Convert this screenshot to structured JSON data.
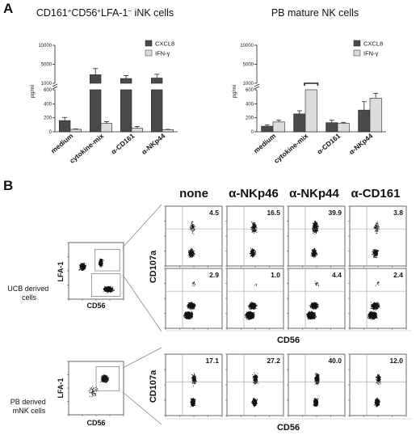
{
  "panel_a": {
    "letter": "A",
    "charts": [
      {
        "title_parts": [
          "CD161",
          "+",
          "CD56",
          "+",
          "LFA-1",
          "−",
          " iNK cells"
        ],
        "legend": [
          "CXCL8",
          "IFN-γ"
        ],
        "ylabel": "pg/ml"
      },
      {
        "title_parts": [
          "PB mature NK cells"
        ],
        "legend": [
          "CXCL8",
          "IFN-γ"
        ],
        "ylabel": "pg/ml"
      }
    ],
    "yticks_lower": [
      "0",
      "200",
      "400",
      "600"
    ],
    "yticks_upper": [
      "1000",
      "5000",
      "10000"
    ]
  },
  "panel_b": {
    "letter": "B",
    "col_headers": [
      "none",
      "α-NKp46",
      "α-NKp44",
      "α-CD161"
    ],
    "row_labels": [
      "UCB derived\ncells",
      "PB derived\nmNK cells"
    ],
    "ucb_top_pct": [
      "4.5",
      "16.5",
      "39.9",
      "3.8"
    ],
    "ucb_bottom_pct": [
      "2.9",
      "1.0",
      "4.4",
      "2.4"
    ],
    "pb_pct": [
      "17.1",
      "27.2",
      "40.0",
      "12.0"
    ],
    "y_axis_label": "CD107a",
    "x_axis_label": "CD56",
    "gate_y_label": "LFA-1",
    "gate_x_label": "CD56"
  },
  "chart_data": [
    {
      "type": "bar",
      "title": "CD161+CD56+LFA-1− iNK cells",
      "categories": [
        "medium",
        "cytokine-mix",
        "α-CD161",
        "α-NKp44"
      ],
      "series": [
        {
          "name": "CXCL8",
          "values": [
            160,
            2800,
            2000,
            2100
          ],
          "errors": [
            45,
            1300,
            600,
            800
          ],
          "color": "#4a4a4a"
        },
        {
          "name": "IFN-γ",
          "values": [
            35,
            120,
            50,
            30
          ],
          "errors": [
            5,
            25,
            25,
            5
          ],
          "color": "#dcdcdc"
        }
      ],
      "ylabel": "pg/ml",
      "axis_break": [
        600,
        1000
      ],
      "ylim": [
        0,
        10000
      ]
    },
    {
      "type": "bar",
      "title": "PB mature NK cells",
      "categories": [
        "medium",
        "cytokine-mix",
        "α-CD161",
        "α-NKp44"
      ],
      "series": [
        {
          "name": "CXCL8",
          "values": [
            80,
            255,
            130,
            310
          ],
          "errors": [
            20,
            45,
            35,
            120
          ],
          "color": "#4a4a4a"
        },
        {
          "name": "IFN-γ",
          "values": [
            140,
            1000,
            120,
            480
          ],
          "errors": [
            25,
            0,
            15,
            70
          ],
          "color": "#dcdcdc"
        }
      ],
      "ylabel": "pg/ml",
      "axis_break": [
        600,
        1000
      ],
      "ylim": [
        0,
        10000
      ]
    }
  ]
}
